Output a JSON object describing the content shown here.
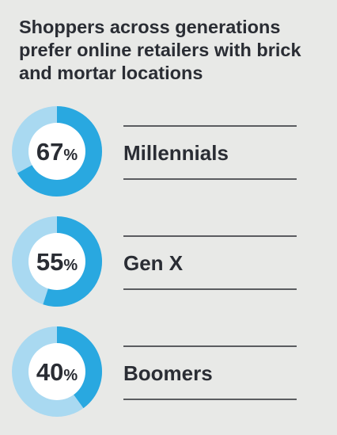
{
  "chart_data": {
    "type": "donut",
    "title": "Shoppers across generations prefer online retailers with brick and mortar locations",
    "categories": [
      "Millennials",
      "Gen X",
      "Boomers"
    ],
    "values": [
      67,
      55,
      40
    ],
    "value_labels": [
      "67%",
      "55%",
      "40%"
    ],
    "color": "#29a8e0",
    "rest_color": "#a9d9f1"
  }
}
